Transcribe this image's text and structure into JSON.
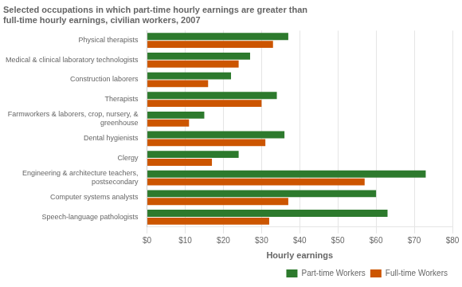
{
  "chart_data": {
    "type": "bar",
    "orientation": "horizontal",
    "title": "Selected occupations in which part-time hourly earnings are greater than\nfull-time hourly earnings, civilian workers, 2007",
    "categories": [
      "Physical therapists",
      "Medical & clinical laboratory technologists",
      "Construction laborers",
      "Therapists",
      "Farmworkers & laborers, crop, nursery, &\ngreenhouse",
      "Dental hygienists",
      "Clergy",
      "Engineering & architecture teachers,\npostsecondary",
      "Computer systems analysts",
      "Speech-language pathologists"
    ],
    "series": [
      {
        "name": "Part-time Workers",
        "color": "#2d7a2d",
        "values": [
          37,
          27,
          22,
          34,
          15,
          36,
          24,
          73,
          60,
          63
        ]
      },
      {
        "name": "Full-time Workers",
        "color": "#cc5500",
        "values": [
          33,
          24,
          16,
          30,
          11,
          31,
          17,
          57,
          37,
          32
        ]
      }
    ],
    "xlabel": "Hourly earnings",
    "xlim": [
      0,
      80
    ],
    "xticks": [
      {
        "value": 0,
        "label": "$0"
      },
      {
        "value": 10,
        "label": "$10"
      },
      {
        "value": 20,
        "label": "$20"
      },
      {
        "value": 30,
        "label": "$30"
      },
      {
        "value": 40,
        "label": "$40"
      },
      {
        "value": 50,
        "label": "$50"
      },
      {
        "value": 60,
        "label": "$60"
      },
      {
        "value": 70,
        "label": "$70"
      },
      {
        "value": 80,
        "label": "$80"
      }
    ],
    "grid": true,
    "legend": "lower right"
  }
}
